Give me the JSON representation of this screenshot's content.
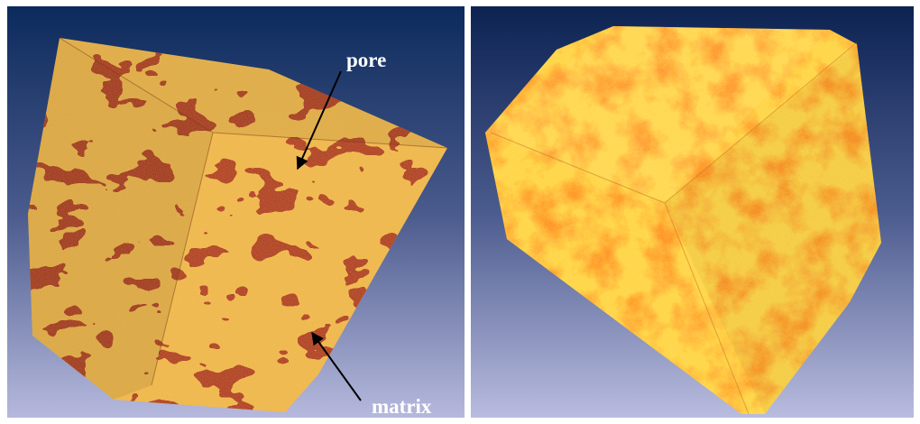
{
  "figure": {
    "left_panel": {
      "annotations": [
        {
          "id": "pore",
          "text": "pore"
        },
        {
          "id": "matrix",
          "text": "matrix"
        }
      ],
      "colors": {
        "background_top": "#0c2a5c",
        "background_bottom": "#b6b9dd",
        "matrix_color": "#f0b545",
        "pore_color": "#a8311a"
      }
    },
    "right_panel": {
      "colors": {
        "background_top": "#0c2352",
        "background_bottom": "#b9bcdf",
        "grain_color": "#ffd43a",
        "pore_color": "#ff8c14"
      }
    }
  }
}
